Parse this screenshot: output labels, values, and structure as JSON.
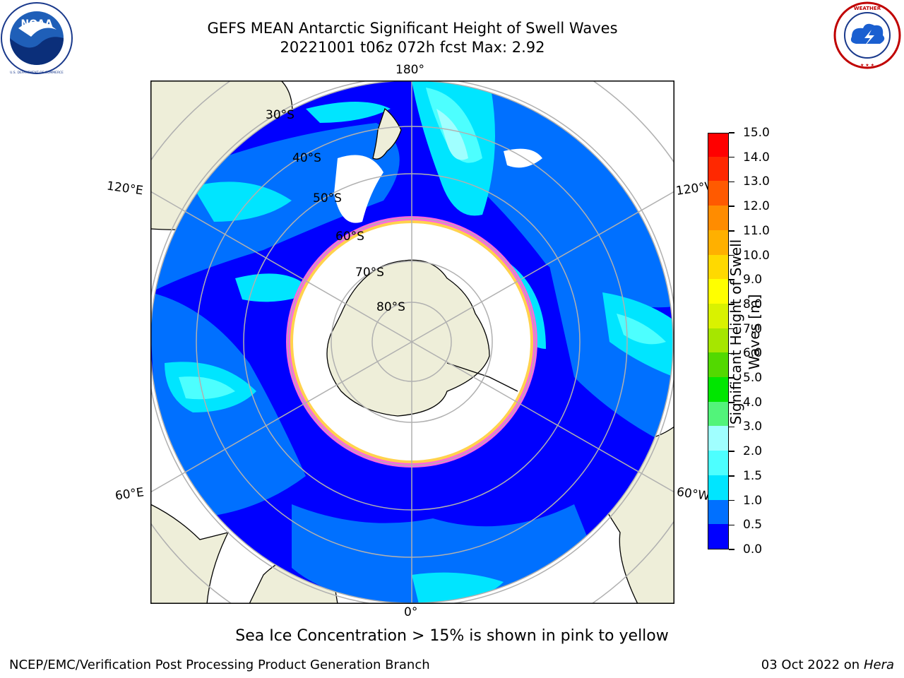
{
  "header": {
    "title_line1": "GEFS MEAN Antarctic Significant Height of Swell Waves",
    "title_line2": "20221001 t06z 072h fcst   Max: 2.92"
  },
  "logos": {
    "left": "noaa-logo",
    "left_text": "NOAA",
    "left_ring_text": "NATIONAL OCEANIC AND ATMOSPHERIC ADMINISTRATION · U.S. DEPARTMENT OF COMMERCE",
    "right": "nws-logo",
    "right_ring_text": "NATIONAL WEATHER SERVICE"
  },
  "map": {
    "projection": "south-polar-stereographic",
    "longitude_labels": {
      "top": "180°",
      "bottom": "0°",
      "upper_left": "120°E",
      "lower_left": "60°E",
      "upper_right": "120°W",
      "lower_right": "60°W"
    },
    "latitude_labels": [
      "30°S",
      "40°S",
      "50°S",
      "60°S",
      "70°S",
      "80°S"
    ],
    "colors": {
      "land": "#eeeed9",
      "ocean_outside": "#ffffff",
      "grid": "#b0b0b0",
      "ice": "#ffffff"
    }
  },
  "colorbar": {
    "label": "Significant Height of Swell Waves [m]",
    "ticks": [
      "0.0",
      "0.5",
      "1.0",
      "1.5",
      "2.0",
      "3.0",
      "4.0",
      "5.0",
      "6.0",
      "7.0",
      "8.0",
      "9.0",
      "10.0",
      "11.0",
      "12.0",
      "13.0",
      "14.0",
      "15.0"
    ],
    "colors": [
      "#0000ff",
      "#0070ff",
      "#00e5ff",
      "#4dffff",
      "#a0ffff",
      "#52f47a",
      "#00e600",
      "#52d900",
      "#a6e600",
      "#d9f200",
      "#ffff00",
      "#ffd900",
      "#ffb000",
      "#ff8c00",
      "#ff5a00",
      "#ff2800",
      "#ff0000"
    ]
  },
  "subtitle": "Sea Ice Concentration > 15% is shown in pink to yellow",
  "footer": {
    "left": "NCEP/EMC/Verification Post Processing Product Generation Branch",
    "right_date": "03 Oct 2022 on ",
    "right_host": "Hera"
  }
}
